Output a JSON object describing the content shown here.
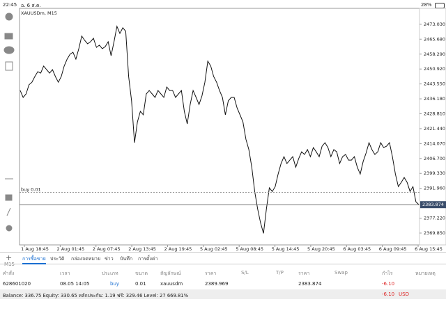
{
  "status": {
    "time": "22:45",
    "date": "อ. 6 ส.ค.",
    "battery": "28%"
  },
  "timeframe": "M15",
  "chart": {
    "type": "line",
    "title": "XAUUSDm, M15",
    "color": "#111",
    "values": [
      2440.3,
      2436.9,
      2438.6,
      2443.1,
      2444.4,
      2447.2,
      2449.6,
      2448.9,
      2452.4,
      2450.6,
      2448.9,
      2450.6,
      2447.2,
      2444.4,
      2447.2,
      2452.4,
      2455.8,
      2458.2,
      2459.2,
      2455.8,
      2461.0,
      2467.2,
      2465.1,
      2463.4,
      2464.4,
      2466.1,
      2461.6,
      2462.7,
      2461.0,
      2462.0,
      2464.4,
      2457.5,
      2464.4,
      2472.0,
      2468.5,
      2471.3,
      2469.6,
      2447.2,
      2435.2,
      2414.5,
      2424.8,
      2430.0,
      2428.3,
      2438.6,
      2440.3,
      2438.6,
      2436.9,
      2440.3,
      2438.6,
      2436.9,
      2442.0,
      2440.3,
      2440.3,
      2436.9,
      2438.6,
      2440.3,
      2430.0,
      2423.8,
      2433.4,
      2440.3,
      2436.9,
      2433.4,
      2437.6,
      2444.4,
      2454.8,
      2452.4,
      2447.2,
      2444.4,
      2440.3,
      2436.9,
      2428.3,
      2435.2,
      2436.9,
      2436.9,
      2431.7,
      2428.3,
      2424.8,
      2416.2,
      2411.1,
      2402.4,
      2390.4,
      2381.8,
      2374.9,
      2369.7,
      2381.8,
      2392.2,
      2390.4,
      2392.8,
      2399.0,
      2404.2,
      2407.6,
      2404.2,
      2405.9,
      2407.6,
      2402.4,
      2406.6,
      2410.0,
      2408.7,
      2411.1,
      2407.6,
      2412.1,
      2410.0,
      2407.6,
      2412.8,
      2414.5,
      2412.1,
      2407.6,
      2411.1,
      2410.0,
      2404.2,
      2407.6,
      2408.7,
      2405.9,
      2405.9,
      2407.6,
      2402.4,
      2399.0,
      2405.2,
      2409.4,
      2414.5,
      2411.1,
      2408.7,
      2410.0,
      2414.5,
      2412.1,
      2412.8,
      2414.5,
      2407.6,
      2399.0,
      2392.8,
      2394.9,
      2397.3,
      2394.9,
      2390.4,
      2392.8,
      2385.3,
      2383.9
    ],
    "ylim": [
      2364.0,
      2480.9
    ],
    "yticks": [
      {
        "value": 2473.03,
        "label": "2473.030"
      },
      {
        "value": 2465.68,
        "label": "2465.680"
      },
      {
        "value": 2458.29,
        "label": "2458.290"
      },
      {
        "value": 2450.92,
        "label": "2450.920"
      },
      {
        "value": 2443.55,
        "label": "2443.550"
      },
      {
        "value": 2436.18,
        "label": "2436.180"
      },
      {
        "value": 2428.81,
        "label": "2428.810"
      },
      {
        "value": 2421.44,
        "label": "2421.440"
      },
      {
        "value": 2414.07,
        "label": "2414.070"
      },
      {
        "value": 2406.7,
        "label": "2406.700"
      },
      {
        "value": 2399.33,
        "label": "2399.330"
      },
      {
        "value": 2391.96,
        "label": "2391.960"
      },
      {
        "value": 2377.22,
        "label": "2377.220"
      },
      {
        "value": 2369.85,
        "label": "2369.850"
      }
    ],
    "last_price": 2383.874,
    "position_label": "buy 0.01",
    "x_labels": [
      "1 Aug 18:45",
      "2 Aug 01:45",
      "2 Aug 07:45",
      "2 Aug 13:45",
      "2 Aug 19:45",
      "5 Aug 02:45",
      "5 Aug 08:45",
      "5 Aug 14:45",
      "5 Aug 20:45",
      "6 Aug 03:45",
      "6 Aug 09:45",
      "6 Aug 15:45"
    ]
  },
  "tabs": [
    "การซื้อขาย",
    "ประวัติ",
    "กล่องจดหมาย",
    "ข่าว",
    "บันทึก",
    "การตั้งค่า"
  ],
  "table": {
    "headers": [
      "คำสั่ง",
      "เวลา",
      "ประเภท",
      "ขนาด",
      "สัญลักษณ์",
      "ราคา",
      "S/L",
      "T/P",
      "ราคา",
      "Swap",
      "กำไร",
      "หมายเหตุ"
    ],
    "rows": [
      [
        "628601020",
        "08.05 14:05",
        "buy",
        "0.01",
        "xauusdm",
        "2389.969",
        "",
        "",
        "2383.874",
        "",
        "-6.10",
        ""
      ]
    ]
  },
  "summary": {
    "text": "Balance: 336.75 Equity: 330.65 หลักประกัน: 1.19 ฟรี: 329.46 Level: 27 669.81%",
    "profit": "-6.10",
    "currency": "USD"
  }
}
